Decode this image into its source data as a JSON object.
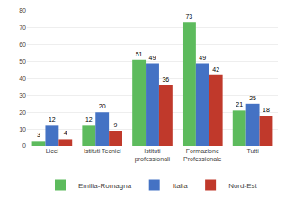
{
  "chart_data": {
    "type": "bar",
    "categories": [
      "Licei",
      "Istituti Tecnici",
      "Istituti\nprofessionali",
      "Formazione\nProfessionale",
      "Tutti"
    ],
    "series": [
      {
        "name": "Emilia-Romagna",
        "color": "#5DBB5D",
        "values": [
          3,
          12,
          51,
          73,
          21
        ]
      },
      {
        "name": "Italia",
        "color": "#4472C4",
        "values": [
          12,
          20,
          49,
          49,
          25
        ]
      },
      {
        "name": "Nord-Est",
        "color": "#C0392B",
        "values": [
          4,
          9,
          36,
          42,
          18
        ]
      }
    ],
    "ylim": [
      0,
      80
    ],
    "yticks": [
      0,
      10,
      20,
      30,
      40,
      50,
      60,
      70,
      80
    ],
    "grid": true,
    "legend": "bottom",
    "data_labels": true
  }
}
